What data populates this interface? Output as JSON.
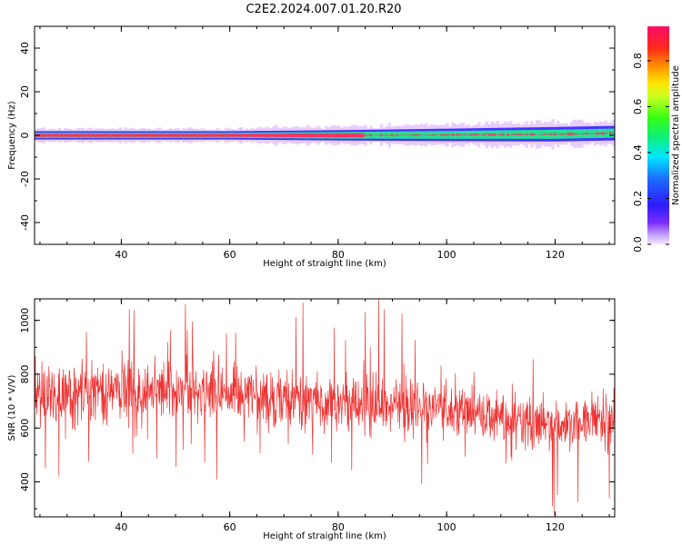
{
  "title": "C2E2.2024.007.01.20.R20",
  "colors": {
    "snr_line": "#ee3333",
    "spectrum_core": "#ff3060",
    "spectrum_mid": "#22ee88",
    "spectrum_edge": "#3322ff",
    "spectrum_halo": "#d8a8ff"
  },
  "chart_data": [
    {
      "type": "heatmap",
      "panel": "top",
      "xlabel": "Height of straight line (km)",
      "ylabel": "Frequency (Hz)",
      "xlim": [
        24,
        131
      ],
      "ylim": [
        -50,
        50
      ],
      "xticks": [
        40,
        60,
        80,
        100,
        120
      ],
      "yticks": [
        -40,
        -20,
        0,
        20,
        40
      ],
      "grid": false,
      "band_center_hz": [
        {
          "x": 24,
          "y": 0.0
        },
        {
          "x": 60,
          "y": 0.0
        },
        {
          "x": 80,
          "y": 0.0
        },
        {
          "x": 100,
          "y": 0.2
        },
        {
          "x": 120,
          "y": 0.5
        },
        {
          "x": 131,
          "y": 1.0
        }
      ],
      "band_halfwidth_hz": [
        {
          "x": 24,
          "y": 2.0
        },
        {
          "x": 60,
          "y": 2.0
        },
        {
          "x": 80,
          "y": 2.5
        },
        {
          "x": 100,
          "y": 3.0
        },
        {
          "x": 120,
          "y": 3.5
        },
        {
          "x": 131,
          "y": 3.5
        }
      ],
      "colorbar": {
        "label": "Normalized spectral amplitude",
        "range": [
          0.0,
          0.95
        ],
        "ticks": [
          0.0,
          0.2,
          0.4,
          0.6,
          0.8
        ]
      }
    },
    {
      "type": "line",
      "panel": "bottom",
      "xlabel": "Height of straight line (km)",
      "ylabel": "SNR (10 * V/V)",
      "xlim": [
        24,
        131
      ],
      "ylim": [
        270,
        1080
      ],
      "xticks": [
        40,
        60,
        80,
        100,
        120
      ],
      "yticks": [
        400,
        600,
        800,
        1000
      ],
      "grid": false,
      "series": [
        {
          "trend": [
            {
              "x": 24,
              "mean": 720,
              "spread": 110
            },
            {
              "x": 40,
              "mean": 740,
              "spread": 120
            },
            {
              "x": 50,
              "mean": 750,
              "spread": 120
            },
            {
              "x": 60,
              "mean": 720,
              "spread": 110
            },
            {
              "x": 70,
              "mean": 710,
              "spread": 110
            },
            {
              "x": 80,
              "mean": 700,
              "spread": 105
            },
            {
              "x": 90,
              "mean": 690,
              "spread": 105
            },
            {
              "x": 100,
              "mean": 660,
              "spread": 100
            },
            {
              "x": 110,
              "mean": 640,
              "spread": 100
            },
            {
              "x": 120,
              "mean": 610,
              "spread": 100
            },
            {
              "x": 131,
              "mean": 640,
              "spread": 105
            }
          ],
          "extremes": [
            {
              "x": 41.5,
              "y": 1040
            },
            {
              "x": 73.5,
              "y": 1065
            },
            {
              "x": 87.5,
              "y": 1080
            },
            {
              "x": 88.5,
              "y": 1040
            },
            {
              "x": 85.0,
              "y": 1030
            },
            {
              "x": 119.8,
              "y": 280
            },
            {
              "x": 119.5,
              "y": 310
            },
            {
              "x": 130.0,
              "y": 340
            },
            {
              "x": 26.0,
              "y": 450
            },
            {
              "x": 28.5,
              "y": 420
            }
          ]
        }
      ]
    }
  ]
}
